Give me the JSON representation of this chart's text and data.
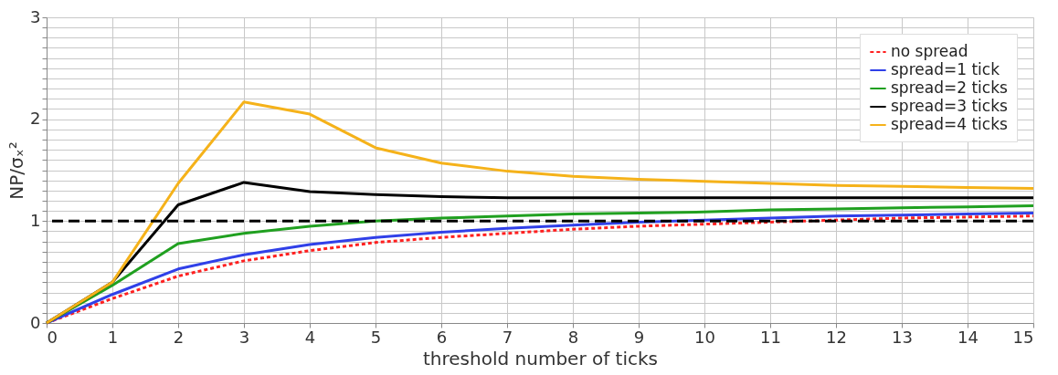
{
  "chart_data": {
    "type": "line",
    "xlabel": "threshold number of ticks",
    "ylabel": "NP/σₓ²",
    "x": [
      0,
      1,
      2,
      3,
      4,
      5,
      6,
      7,
      8,
      9,
      10,
      11,
      12,
      13,
      14,
      15
    ],
    "series": [
      {
        "name": "no spread",
        "color": "#ff2020",
        "line_style": "dotted",
        "values": [
          0,
          0.24,
          0.46,
          0.61,
          0.71,
          0.79,
          0.84,
          0.88,
          0.92,
          0.95,
          0.97,
          0.99,
          1.01,
          1.03,
          1.04,
          1.05
        ]
      },
      {
        "name": "spread=1 tick",
        "color": "#3040e8",
        "values": [
          0,
          0.28,
          0.53,
          0.67,
          0.77,
          0.84,
          0.89,
          0.93,
          0.96,
          0.99,
          1.01,
          1.03,
          1.05,
          1.06,
          1.07,
          1.08
        ]
      },
      {
        "name": "spread=2 ticks",
        "color": "#20a020",
        "values": [
          0,
          0.37,
          0.78,
          0.88,
          0.95,
          1.0,
          1.03,
          1.05,
          1.07,
          1.08,
          1.09,
          1.11,
          1.12,
          1.13,
          1.14,
          1.15
        ]
      },
      {
        "name": "spread=3 ticks",
        "color": "#000000",
        "values": [
          0,
          0.4,
          1.16,
          1.38,
          1.29,
          1.26,
          1.24,
          1.23,
          1.23,
          1.23,
          1.23,
          1.23,
          1.23,
          1.23,
          1.23,
          1.23
        ]
      },
      {
        "name": "spread=4 ticks",
        "color": "#f5b21a",
        "values": [
          0,
          0.4,
          1.37,
          2.17,
          2.05,
          1.72,
          1.57,
          1.49,
          1.44,
          1.41,
          1.39,
          1.37,
          1.35,
          1.34,
          1.33,
          1.32
        ]
      }
    ],
    "xlim": [
      0,
      15
    ],
    "xticks": [
      0,
      1,
      2,
      3,
      4,
      5,
      6,
      7,
      8,
      9,
      10,
      11,
      12,
      13,
      14,
      15
    ],
    "ylim": [
      0,
      3
    ],
    "yticks": [
      0,
      {
        "value": 0.1,
        "label": null
      },
      {
        "value": 0.2,
        "label": null
      },
      {
        "value": 0.3,
        "label": null
      },
      {
        "value": 0.4,
        "label": null
      },
      {
        "value": 0.5,
        "label": null
      },
      {
        "value": 0.6,
        "label": null
      },
      {
        "value": 0.7,
        "label": null
      },
      {
        "value": 0.8,
        "label": null
      },
      {
        "value": 0.9,
        "label": null
      },
      1,
      {
        "value": 1.1,
        "label": null
      },
      {
        "value": 1.2,
        "label": null
      },
      {
        "value": 1.3,
        "label": null
      },
      {
        "value": 1.4,
        "label": null
      },
      {
        "value": 1.5,
        "label": null
      },
      {
        "value": 1.6,
        "label": null
      },
      {
        "value": 1.7,
        "label": null
      },
      {
        "value": 1.8,
        "label": null
      },
      {
        "value": 1.9,
        "label": null
      },
      2,
      {
        "value": 2.1,
        "label": null
      },
      {
        "value": 2.2,
        "label": null
      },
      {
        "value": 2.3,
        "label": null
      },
      {
        "value": 2.4,
        "label": null
      },
      {
        "value": 2.5,
        "label": null
      },
      {
        "value": 2.6,
        "label": null
      },
      {
        "value": 2.7,
        "label": null
      },
      {
        "value": 2.8,
        "label": null
      },
      {
        "value": 2.9,
        "label": null
      },
      3
    ],
    "ref_lines": [
      {
        "axis": "y",
        "value": 1,
        "color": "#000000",
        "line_style": "dashed"
      }
    ],
    "grid": true,
    "legend": "top right",
    "marker": "none",
    "line_style": "solid"
  }
}
